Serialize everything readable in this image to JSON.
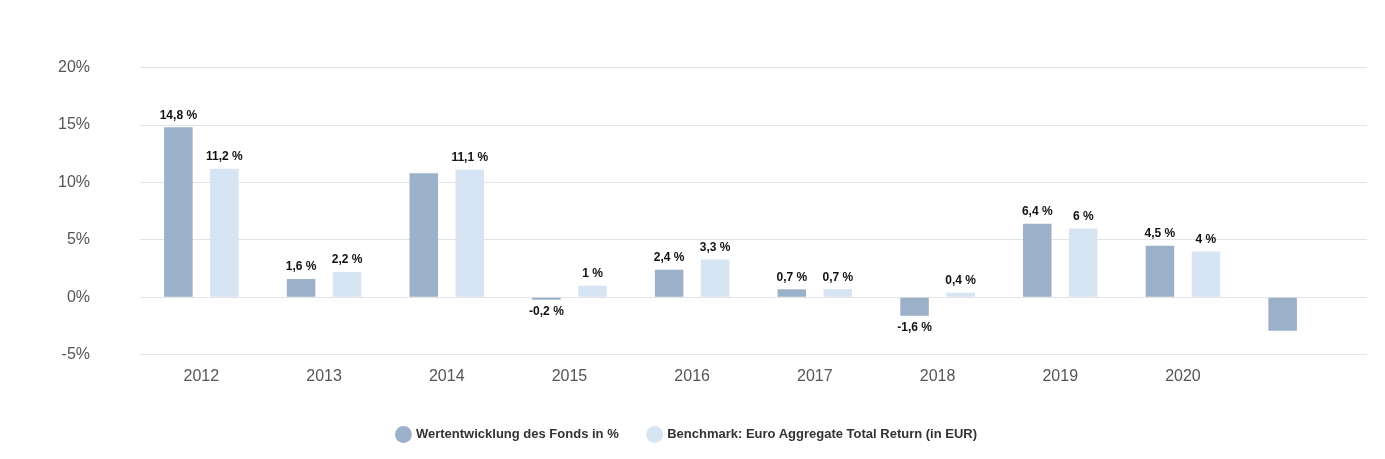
{
  "chart_data": {
    "type": "bar",
    "categories": [
      "2012",
      "2013",
      "2014",
      "2015",
      "2016",
      "2017",
      "2018",
      "2019",
      "2020",
      null
    ],
    "series": [
      {
        "name": "Wertentwicklung des Fonds in %",
        "color": "#9bb0c9",
        "values": [
          14.8,
          1.6,
          10.8,
          -0.2,
          2.4,
          0.7,
          -1.6,
          6.4,
          4.5,
          -2.9
        ],
        "value_labels": [
          "14,8 %",
          "1,6 %",
          null,
          "-0,2 %",
          "2,4 %",
          "0,7 %",
          "-1,6 %",
          "6,4 %",
          "4,5 %",
          null
        ]
      },
      {
        "name": "Benchmark: Euro Aggregate Total Return (in EUR)",
        "color": "#d6e4f3",
        "values": [
          11.2,
          2.2,
          11.1,
          1,
          3.3,
          0.7,
          0.4,
          6,
          4,
          null
        ],
        "value_labels": [
          "11,2 %",
          "2,2 %",
          "11,1 %",
          "1 %",
          "3,3 %",
          "0,7 %",
          "0,4 %",
          "6 %",
          "4 %",
          null
        ]
      }
    ],
    "ylim": [
      -5,
      20
    ],
    "yticks": [
      {
        "value": -5,
        "label": "-5%"
      },
      {
        "value": 0,
        "label": "0%"
      },
      {
        "value": 5,
        "label": "5%"
      },
      {
        "value": 10,
        "label": "10%"
      },
      {
        "value": 15,
        "label": "15%"
      },
      {
        "value": 20,
        "label": "20%"
      }
    ],
    "grid": "y",
    "legend": "bottom"
  }
}
